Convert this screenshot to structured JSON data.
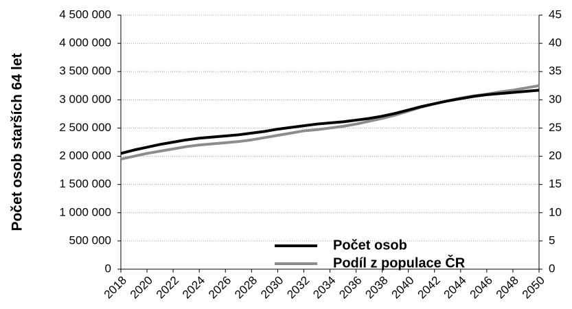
{
  "chart_data": {
    "type": "line",
    "ylabel": "Počet osob starších 64 let",
    "x": [
      2018,
      2019,
      2020,
      2021,
      2022,
      2023,
      2024,
      2025,
      2026,
      2027,
      2028,
      2029,
      2030,
      2031,
      2032,
      2033,
      2034,
      2035,
      2036,
      2037,
      2038,
      2039,
      2040,
      2041,
      2042,
      2043,
      2044,
      2045,
      2046,
      2047,
      2048,
      2049,
      2050
    ],
    "xlim": [
      2018,
      2050
    ],
    "xticks": [
      2018,
      2020,
      2022,
      2024,
      2026,
      2028,
      2030,
      2032,
      2034,
      2036,
      2038,
      2040,
      2042,
      2044,
      2046,
      2048,
      2050
    ],
    "ylim": [
      0,
      4500000
    ],
    "yticks": [
      {
        "value": 0,
        "label": "0"
      },
      {
        "value": 500000,
        "label": "500 000"
      },
      {
        "value": 1000000,
        "label": "1 000 000"
      },
      {
        "value": 1500000,
        "label": "1 500 000"
      },
      {
        "value": 2000000,
        "label": "2 000 000"
      },
      {
        "value": 2500000,
        "label": "2 500 000"
      },
      {
        "value": 3000000,
        "label": "3 000 000"
      },
      {
        "value": 3500000,
        "label": "3 500 000"
      },
      {
        "value": 4000000,
        "label": "4 000 000"
      },
      {
        "value": 4500000,
        "label": "4 500 000"
      }
    ],
    "y2lim": [
      0,
      45
    ],
    "y2ticks": [
      0,
      5,
      10,
      15,
      20,
      25,
      30,
      35,
      40,
      45
    ],
    "grid": true,
    "series": [
      {
        "name": "Počet osob",
        "color": "#000000",
        "values": [
          2050000,
          2110000,
          2160000,
          2210000,
          2250000,
          2290000,
          2320000,
          2340000,
          2360000,
          2380000,
          2410000,
          2440000,
          2480000,
          2510000,
          2540000,
          2570000,
          2590000,
          2610000,
          2640000,
          2670000,
          2710000,
          2760000,
          2820000,
          2880000,
          2930000,
          2980000,
          3020000,
          3060000,
          3090000,
          3110000,
          3130000,
          3150000,
          3170000
        ]
      },
      {
        "name": "Podíl z populace ČR",
        "color": "#8c8c8c",
        "axis": "y2",
        "values": [
          19.5,
          20.0,
          20.5,
          20.9,
          21.3,
          21.7,
          22.0,
          22.2,
          22.4,
          22.6,
          22.9,
          23.3,
          23.7,
          24.1,
          24.5,
          24.7,
          25.0,
          25.3,
          25.7,
          26.2,
          26.7,
          27.3,
          28.0,
          28.7,
          29.3,
          29.8,
          30.3,
          30.7,
          31.0,
          31.4,
          31.7,
          32.1,
          32.5
        ]
      }
    ]
  }
}
